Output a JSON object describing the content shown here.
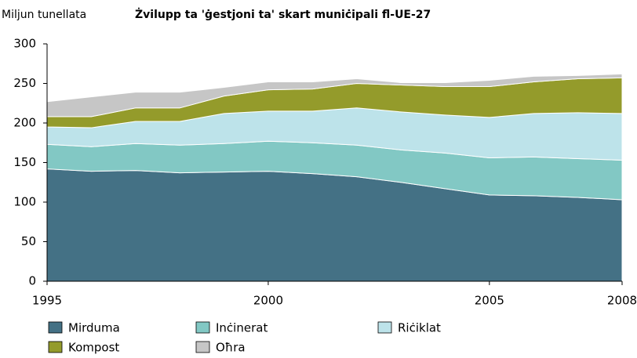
{
  "chart_data": {
    "type": "stacked_area",
    "title": "Żvilupp ta 'ġestjoni ta' skart muniċipali fl-UE-27",
    "y_label": "Miljun tunellata",
    "x": [
      1995,
      1996,
      1997,
      1998,
      1999,
      2000,
      2001,
      2002,
      2003,
      2004,
      2005,
      2006,
      2007,
      2008
    ],
    "series": [
      {
        "name": "Mirduma",
        "color": "#447185",
        "values": [
          142,
          139,
          140,
          137,
          138,
          139,
          136,
          132,
          125,
          117,
          109,
          108,
          106,
          103
        ]
      },
      {
        "name": "Inċinerat",
        "color": "#82c8c4",
        "values": [
          31,
          31,
          34,
          35,
          36,
          38,
          39,
          40,
          41,
          45,
          47,
          49,
          49,
          50
        ]
      },
      {
        "name": "Riċiklat",
        "color": "#bde3ea",
        "values": [
          22,
          24,
          28,
          30,
          38,
          38,
          40,
          47,
          48,
          48,
          51,
          55,
          58,
          59
        ]
      },
      {
        "name": "Kompost",
        "color": "#949b2b",
        "values": [
          13,
          14,
          17,
          17,
          22,
          27,
          28,
          31,
          34,
          36,
          39,
          40,
          43,
          45
        ]
      },
      {
        "name": "Oħra",
        "color": "#c6c6c6",
        "values": [
          19,
          25,
          20,
          20,
          11,
          10,
          9,
          6,
          3,
          5,
          8,
          7,
          4,
          5
        ]
      }
    ],
    "xlim": [
      1995,
      2008
    ],
    "xticks": [
      1995,
      2000,
      2005,
      2008
    ],
    "ylim": [
      0,
      300
    ],
    "yticks": [
      0,
      50,
      100,
      150,
      200,
      250,
      300
    ],
    "grid": false
  }
}
